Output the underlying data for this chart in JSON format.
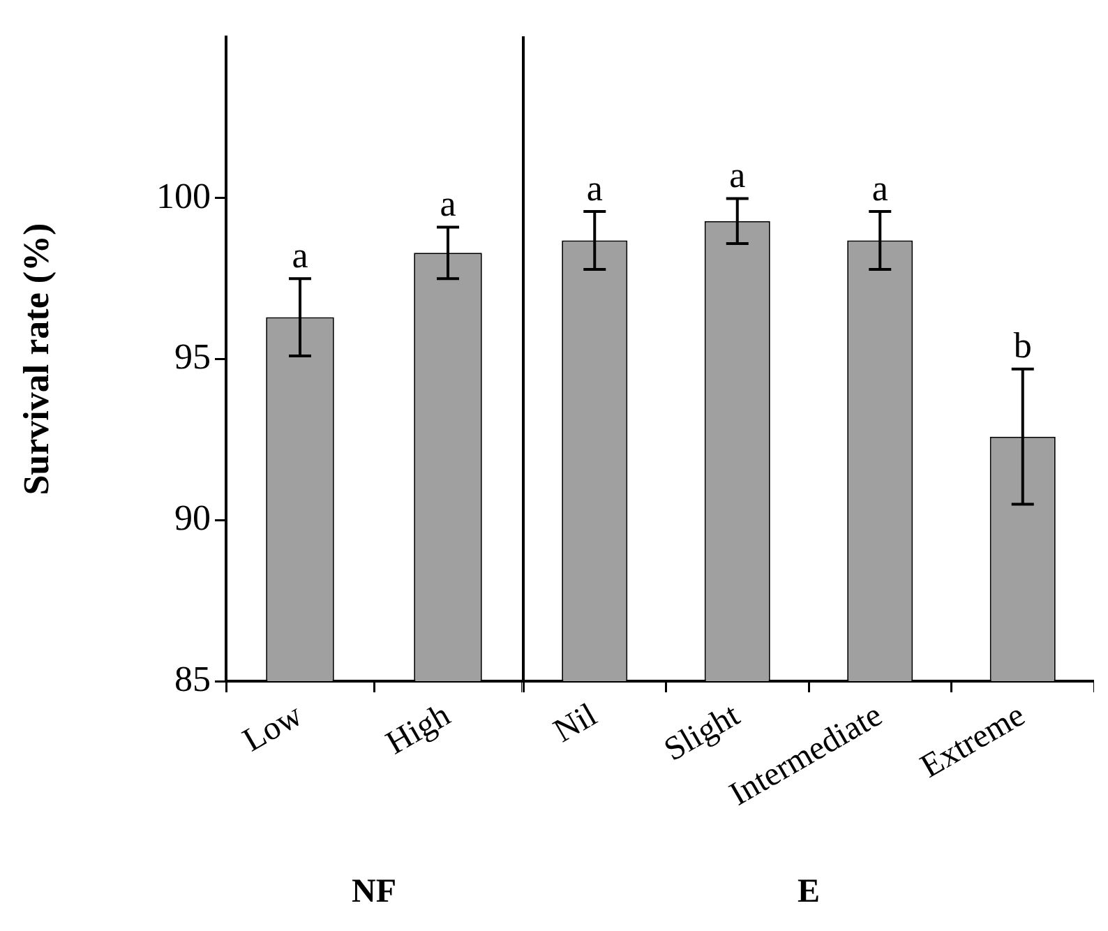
{
  "chart_data": [
    {
      "type": "bar",
      "ylabel": "Survival rate (%)",
      "xlabel": "NF",
      "categories": [
        "Low",
        "High"
      ],
      "values": [
        96.3,
        98.3
      ],
      "errors": [
        1.2,
        0.8
      ],
      "color": "#a0a0a0",
      "ylim": [
        85,
        105
      ],
      "yticks": [
        85,
        90,
        95,
        100
      ],
      "grid": false,
      "annotations": [
        {
          "text": "a",
          "x": "Low",
          "y": 97.5
        },
        {
          "text": "a",
          "x": "High",
          "y": 99.1
        }
      ]
    },
    {
      "type": "bar",
      "xlabel": "E",
      "categories": [
        "Nil",
        "Slight",
        "Intermediate",
        "Extreme"
      ],
      "values": [
        98.7,
        99.3,
        98.7,
        92.6
      ],
      "errors": [
        0.9,
        0.7,
        0.9,
        2.1
      ],
      "color": "#a0a0a0",
      "ylim": [
        85,
        105
      ],
      "tick_labels": "x",
      "grid": false,
      "annotations": [
        {
          "text": "a",
          "x": "Nil",
          "y": 99.6
        },
        {
          "text": "a",
          "x": "Slight",
          "y": 100.0
        },
        {
          "text": "a",
          "x": "Intermediate",
          "y": 99.6
        },
        {
          "text": "b",
          "x": "Extreme",
          "y": 94.7
        }
      ]
    }
  ]
}
